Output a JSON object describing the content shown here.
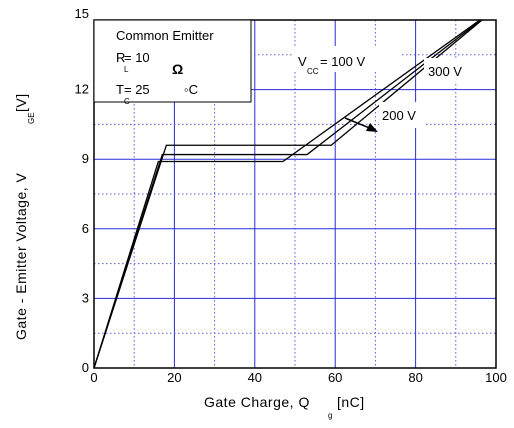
{
  "chart_data": {
    "type": "line",
    "xlim": [
      0,
      100
    ],
    "ylim": [
      0,
      15
    ],
    "x_ticks": [
      "0",
      "20",
      "40",
      "60",
      "80",
      "100"
    ],
    "y_ticks": [
      "0",
      "3",
      "6",
      "9",
      "12",
      "15"
    ],
    "grid": true,
    "xlabel": {
      "main": "Gate Charge, Q",
      "sub": "g",
      "unit": " [nC]"
    },
    "ylabel": {
      "main": "Gate - Emitter Voltage, V",
      "sub": "GE",
      "unit": " [V]"
    },
    "legend_box": {
      "title": "Common Emitter",
      "line1_main": "R",
      "line1_sub": "L",
      "line1_value": " = 10",
      "line1_unit": "Ω",
      "line2_main": "T",
      "line2_sub": "C",
      "line2_value": " = 25",
      "line2_unit": "◦C"
    },
    "annotations": {
      "vcc_main": "V",
      "vcc_sub": "CC",
      "vcc_value": " = 100 V",
      "v300": "300 V",
      "v200": "200 V"
    },
    "series": [
      {
        "x": [
          0,
          16,
          47,
          100
        ],
        "y": [
          0,
          8.9,
          8.9,
          15.5
        ]
      },
      {
        "x": [
          0,
          17,
          53,
          100
        ],
        "y": [
          0,
          9.2,
          9.2,
          15.5
        ]
      },
      {
        "x": [
          0,
          18,
          59,
          100
        ],
        "y": [
          0,
          9.6,
          9.6,
          15.5
        ]
      }
    ]
  }
}
